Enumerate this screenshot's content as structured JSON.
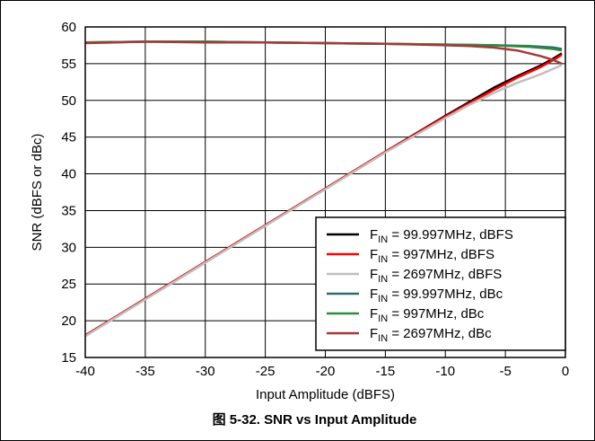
{
  "chart_data": {
    "type": "line",
    "title": "",
    "caption": "图 5-32. SNR vs Input Amplitude",
    "xlabel": "Input Amplitude (dBFS)",
    "ylabel": "SNR (dBFS or dBc)",
    "xlim": [
      -40,
      0
    ],
    "ylim": [
      15,
      60
    ],
    "xticks": [
      -40,
      -35,
      -30,
      -25,
      -20,
      -15,
      -10,
      -5,
      0
    ],
    "yticks": [
      15,
      20,
      25,
      30,
      35,
      40,
      45,
      50,
      55,
      60
    ],
    "grid": true,
    "legend_position": "bottom-right",
    "series": [
      {
        "name": "F_IN = 99.997MHz, dBFS",
        "name_main": "F",
        "name_sub": "IN",
        "name_rest": " = 99.997MHz, dBFS",
        "color": "#000000",
        "x": [
          -40,
          -35,
          -30,
          -25,
          -20,
          -15,
          -10,
          -8,
          -6,
          -4,
          -2,
          -1,
          -0.3
        ],
        "y": [
          18.0,
          23.0,
          28.0,
          33.0,
          38.0,
          43.0,
          47.9,
          49.8,
          51.7,
          53.3,
          54.8,
          55.7,
          56.4
        ]
      },
      {
        "name": "F_IN = 997MHz, dBFS",
        "name_main": "F",
        "name_sub": "IN",
        "name_rest": " = 997MHz, dBFS",
        "color": "#ff0000",
        "x": [
          -40,
          -35,
          -30,
          -25,
          -20,
          -15,
          -10,
          -8,
          -6,
          -4,
          -2,
          -1,
          -0.3
        ],
        "y": [
          18.0,
          23.0,
          28.0,
          33.0,
          38.0,
          43.0,
          47.8,
          49.6,
          51.4,
          53.1,
          54.6,
          55.5,
          56.2
        ]
      },
      {
        "name": "F_IN = 2697MHz, dBFS",
        "name_main": "F",
        "name_sub": "IN",
        "name_rest": " = 2697MHz, dBFS",
        "color": "#bfbfbf",
        "x": [
          -40,
          -35,
          -30,
          -25,
          -20,
          -15,
          -10,
          -8,
          -6,
          -4,
          -2,
          -1,
          -0.3
        ],
        "y": [
          17.9,
          22.9,
          27.9,
          32.9,
          37.9,
          42.9,
          47.6,
          49.4,
          51.0,
          52.4,
          53.6,
          54.3,
          54.8
        ]
      },
      {
        "name": "F_IN = 99.997MHz, dBc",
        "name_main": "F",
        "name_sub": "IN",
        "name_rest": " = 99.997MHz, dBc",
        "color": "#2f6b6e",
        "x": [
          -40,
          -35,
          -30,
          -25,
          -20,
          -15,
          -10,
          -6,
          -3,
          -1,
          -0.3
        ],
        "y": [
          57.9,
          58.0,
          58.0,
          57.9,
          57.8,
          57.7,
          57.6,
          57.5,
          57.4,
          57.2,
          57.0
        ]
      },
      {
        "name": "F_IN = 997MHz, dBc",
        "name_main": "F",
        "name_sub": "IN",
        "name_rest": " = 997MHz, dBc",
        "color": "#2e8b3e",
        "x": [
          -40,
          -35,
          -30,
          -25,
          -20,
          -15,
          -10,
          -6,
          -3,
          -1,
          -0.3
        ],
        "y": [
          57.9,
          58.0,
          58.0,
          57.9,
          57.8,
          57.7,
          57.6,
          57.5,
          57.3,
          57.0,
          56.8
        ]
      },
      {
        "name": "F_IN = 2697MHz, dBc",
        "name_main": "F",
        "name_sub": "IN",
        "name_rest": " = 2697MHz, dBc",
        "color": "#a33a3a",
        "x": [
          -40,
          -35,
          -30,
          -25,
          -20,
          -15,
          -10,
          -8,
          -6,
          -4,
          -2,
          -1,
          -0.3
        ],
        "y": [
          57.8,
          58.0,
          57.9,
          57.9,
          57.8,
          57.7,
          57.5,
          57.4,
          57.2,
          56.8,
          56.0,
          55.5,
          55.0
        ]
      }
    ]
  }
}
